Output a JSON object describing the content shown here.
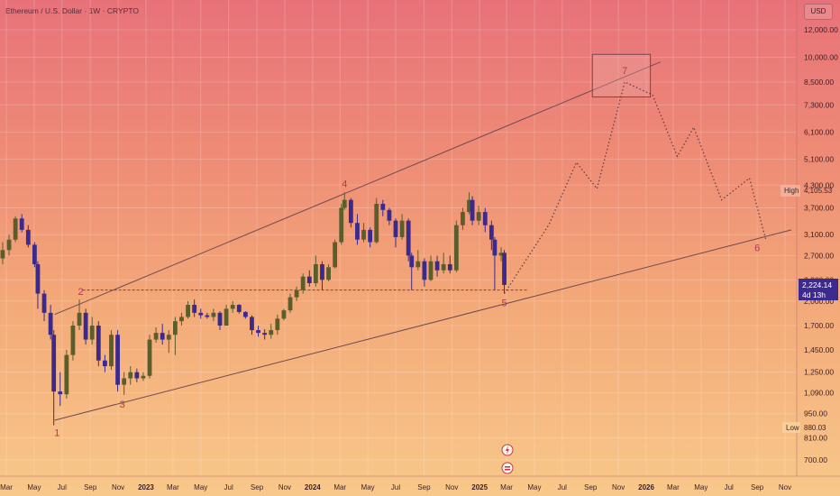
{
  "header": {
    "title": "Ethereum / U.S. Dollar · 1W · CRYPTO",
    "currency_button": "USD"
  },
  "colors": {
    "candle_up": "#5b5d2a",
    "candle_down": "#3b2a8c",
    "trendline": "#6e4a52",
    "projection": "#5a3a40",
    "wave_label": "#b8325a",
    "current_price_bg": "#3d2a8e"
  },
  "chart_data": {
    "type": "candlestick",
    "symbol": "Ethereum / U.S. Dollar",
    "interval": "1W",
    "y_scale": "log",
    "price_ticks": [
      12000,
      10000,
      8500,
      7300,
      6100,
      5100,
      4300,
      3700,
      3100,
      2700,
      2300,
      2000,
      1700,
      1450,
      1250,
      1090,
      950,
      810,
      700
    ],
    "price_tick_labels": [
      "12,000.00",
      "10,000.00",
      "8,500.00",
      "7,300.00",
      "6,100.00",
      "5,100.00",
      "4,300.00",
      "3,700.00",
      "3,100.00",
      "2,700.00",
      "2,300.00",
      "2,000.00",
      "1,700.00",
      "1,450.00",
      "1,250.00",
      "1,090.00",
      "950.00",
      "810.00",
      "700.00"
    ],
    "time_ticks": [
      {
        "label": "Mar",
        "date": "2022-03",
        "bold": false
      },
      {
        "label": "May",
        "date": "2022-05",
        "bold": false
      },
      {
        "label": "Jul",
        "date": "2022-07",
        "bold": false
      },
      {
        "label": "Sep",
        "date": "2022-09",
        "bold": false
      },
      {
        "label": "Nov",
        "date": "2022-11",
        "bold": false
      },
      {
        "label": "2023",
        "date": "2023-01",
        "bold": true
      },
      {
        "label": "Mar",
        "date": "2023-03",
        "bold": false
      },
      {
        "label": "May",
        "date": "2023-05",
        "bold": false
      },
      {
        "label": "Jul",
        "date": "2023-07",
        "bold": false
      },
      {
        "label": "Sep",
        "date": "2023-09",
        "bold": false
      },
      {
        "label": "Nov",
        "date": "2023-11",
        "bold": false
      },
      {
        "label": "2024",
        "date": "2024-01",
        "bold": true
      },
      {
        "label": "Mar",
        "date": "2024-03",
        "bold": false
      },
      {
        "label": "May",
        "date": "2024-05",
        "bold": false
      },
      {
        "label": "Jul",
        "date": "2024-07",
        "bold": false
      },
      {
        "label": "Sep",
        "date": "2024-09",
        "bold": false
      },
      {
        "label": "Nov",
        "date": "2024-11",
        "bold": false
      },
      {
        "label": "2025",
        "date": "2025-01",
        "bold": true
      },
      {
        "label": "Mar",
        "date": "2025-03",
        "bold": false
      },
      {
        "label": "May",
        "date": "2025-05",
        "bold": false
      },
      {
        "label": "Jul",
        "date": "2025-07",
        "bold": false
      },
      {
        "label": "Sep",
        "date": "2025-09",
        "bold": false
      },
      {
        "label": "Nov",
        "date": "2025-11",
        "bold": false
      },
      {
        "label": "2026",
        "date": "2026-01",
        "bold": true
      },
      {
        "label": "Mar",
        "date": "2026-03",
        "bold": false
      },
      {
        "label": "May",
        "date": "2026-05",
        "bold": false
      },
      {
        "label": "Jul",
        "date": "2026-07",
        "bold": false
      },
      {
        "label": "Sep",
        "date": "2026-09",
        "bold": false
      },
      {
        "label": "Nov",
        "date": "2026-11",
        "bold": false
      }
    ],
    "high": {
      "label": "High",
      "value": 4105.53,
      "value_label": "4,105.53"
    },
    "low": {
      "label": "Low",
      "value": 880.03,
      "value_label": "880.03"
    },
    "current_price": {
      "value": 2224.14,
      "value_label": "2,224.14",
      "countdown": "4d 13h"
    },
    "support_level": 2150,
    "wave_points": [
      {
        "label": "1",
        "date": "2022-06-20",
        "price": 880
      },
      {
        "label": "2",
        "date": "2022-08-15",
        "price": 2020
      },
      {
        "label": "3",
        "date": "2022-11-10",
        "price": 1075
      },
      {
        "label": "4",
        "date": "2024-03-11",
        "price": 4100
      },
      {
        "label": "5",
        "date": "2025-02-24",
        "price": 2100
      },
      {
        "label": "7",
        "date": "2025-11-15",
        "price": 8500
      },
      {
        "label": "6",
        "date": "2026-09-05",
        "price": 2950
      }
    ],
    "channel_upper": [
      {
        "date": "2022-06-15",
        "price": 1830
      },
      {
        "date": "2026-02-01",
        "price": 9700
      }
    ],
    "channel_lower": [
      {
        "date": "2022-06-15",
        "price": 910
      },
      {
        "date": "2026-11-15",
        "price": 3200
      }
    ],
    "target_box": {
      "from": "2025-09-05",
      "to": "2026-01-10",
      "high": 10200,
      "low": 7700
    },
    "projection_path": [
      {
        "date": "2025-02-24",
        "price": 2100
      },
      {
        "date": "2025-06-01",
        "price": 3300
      },
      {
        "date": "2025-08-01",
        "price": 5000
      },
      {
        "date": "2025-09-15",
        "price": 4200
      },
      {
        "date": "2025-11-15",
        "price": 8500
      },
      {
        "date": "2026-01-15",
        "price": 7800
      },
      {
        "date": "2026-03-10",
        "price": 5200
      },
      {
        "date": "2026-04-15",
        "price": 6300
      },
      {
        "date": "2026-06-15",
        "price": 3900
      },
      {
        "date": "2026-08-15",
        "price": 4500
      },
      {
        "date": "2026-09-20",
        "price": 3000
      }
    ],
    "candles": [
      {
        "date": "2022-02-07",
        "o": 2600,
        "h": 2850,
        "l": 2450,
        "c": 2650
      },
      {
        "date": "2022-02-21",
        "o": 2650,
        "h": 2950,
        "l": 2550,
        "c": 2800
      },
      {
        "date": "2022-03-07",
        "o": 2800,
        "h": 3100,
        "l": 2700,
        "c": 3000
      },
      {
        "date": "2022-03-21",
        "o": 3000,
        "h": 3500,
        "l": 2950,
        "c": 3450
      },
      {
        "date": "2022-04-04",
        "o": 3450,
        "h": 3550,
        "l": 3150,
        "c": 3200
      },
      {
        "date": "2022-04-18",
        "o": 3200,
        "h": 3300,
        "l": 2850,
        "c": 2900
      },
      {
        "date": "2022-05-02",
        "o": 2900,
        "h": 2950,
        "l": 2500,
        "c": 2550
      },
      {
        "date": "2022-05-09",
        "o": 2550,
        "h": 2600,
        "l": 1900,
        "c": 2100
      },
      {
        "date": "2022-05-23",
        "o": 2100,
        "h": 2150,
        "l": 1750,
        "c": 1850
      },
      {
        "date": "2022-06-06",
        "o": 1850,
        "h": 1950,
        "l": 1550,
        "c": 1600
      },
      {
        "date": "2022-06-13",
        "o": 1600,
        "h": 1650,
        "l": 880,
        "c": 1100
      },
      {
        "date": "2022-06-27",
        "o": 1100,
        "h": 1250,
        "l": 1000,
        "c": 1080
      },
      {
        "date": "2022-07-11",
        "o": 1080,
        "h": 1450,
        "l": 1050,
        "c": 1400
      },
      {
        "date": "2022-07-25",
        "o": 1400,
        "h": 1750,
        "l": 1350,
        "c": 1700
      },
      {
        "date": "2022-08-08",
        "o": 1700,
        "h": 2020,
        "l": 1650,
        "c": 1850
      },
      {
        "date": "2022-08-22",
        "o": 1850,
        "h": 1900,
        "l": 1500,
        "c": 1550
      },
      {
        "date": "2022-09-05",
        "o": 1550,
        "h": 1800,
        "l": 1500,
        "c": 1700
      },
      {
        "date": "2022-09-19",
        "o": 1700,
        "h": 1750,
        "l": 1300,
        "c": 1350
      },
      {
        "date": "2022-10-03",
        "o": 1350,
        "h": 1400,
        "l": 1250,
        "c": 1300
      },
      {
        "date": "2022-10-17",
        "o": 1300,
        "h": 1650,
        "l": 1270,
        "c": 1600
      },
      {
        "date": "2022-10-31",
        "o": 1600,
        "h": 1650,
        "l": 1100,
        "c": 1150
      },
      {
        "date": "2022-11-14",
        "o": 1150,
        "h": 1250,
        "l": 1075,
        "c": 1200
      },
      {
        "date": "2022-11-28",
        "o": 1200,
        "h": 1300,
        "l": 1150,
        "c": 1250
      },
      {
        "date": "2022-12-12",
        "o": 1250,
        "h": 1280,
        "l": 1170,
        "c": 1200
      },
      {
        "date": "2022-12-26",
        "o": 1200,
        "h": 1250,
        "l": 1180,
        "c": 1220
      },
      {
        "date": "2023-01-09",
        "o": 1220,
        "h": 1600,
        "l": 1200,
        "c": 1550
      },
      {
        "date": "2023-01-23",
        "o": 1550,
        "h": 1680,
        "l": 1520,
        "c": 1620
      },
      {
        "date": "2023-02-06",
        "o": 1620,
        "h": 1720,
        "l": 1500,
        "c": 1550
      },
      {
        "date": "2023-02-20",
        "o": 1550,
        "h": 1650,
        "l": 1420,
        "c": 1600
      },
      {
        "date": "2023-03-06",
        "o": 1600,
        "h": 1800,
        "l": 1400,
        "c": 1750
      },
      {
        "date": "2023-03-20",
        "o": 1750,
        "h": 1850,
        "l": 1700,
        "c": 1800
      },
      {
        "date": "2023-04-03",
        "o": 1800,
        "h": 2000,
        "l": 1780,
        "c": 1950
      },
      {
        "date": "2023-04-17",
        "o": 1950,
        "h": 2020,
        "l": 1800,
        "c": 1850
      },
      {
        "date": "2023-05-01",
        "o": 1850,
        "h": 1900,
        "l": 1780,
        "c": 1820
      },
      {
        "date": "2023-05-15",
        "o": 1820,
        "h": 1850,
        "l": 1780,
        "c": 1800
      },
      {
        "date": "2023-05-29",
        "o": 1800,
        "h": 1900,
        "l": 1750,
        "c": 1850
      },
      {
        "date": "2023-06-12",
        "o": 1850,
        "h": 1870,
        "l": 1650,
        "c": 1700
      },
      {
        "date": "2023-06-26",
        "o": 1700,
        "h": 1950,
        "l": 1700,
        "c": 1900
      },
      {
        "date": "2023-07-10",
        "o": 1900,
        "h": 2000,
        "l": 1850,
        "c": 1950
      },
      {
        "date": "2023-07-24",
        "o": 1950,
        "h": 1960,
        "l": 1840,
        "c": 1860
      },
      {
        "date": "2023-08-07",
        "o": 1860,
        "h": 1870,
        "l": 1780,
        "c": 1800
      },
      {
        "date": "2023-08-21",
        "o": 1800,
        "h": 1820,
        "l": 1600,
        "c": 1650
      },
      {
        "date": "2023-09-04",
        "o": 1650,
        "h": 1700,
        "l": 1580,
        "c": 1620
      },
      {
        "date": "2023-09-18",
        "o": 1620,
        "h": 1660,
        "l": 1550,
        "c": 1600
      },
      {
        "date": "2023-10-02",
        "o": 1600,
        "h": 1720,
        "l": 1560,
        "c": 1650
      },
      {
        "date": "2023-10-16",
        "o": 1650,
        "h": 1830,
        "l": 1600,
        "c": 1780
      },
      {
        "date": "2023-10-30",
        "o": 1780,
        "h": 1900,
        "l": 1760,
        "c": 1880
      },
      {
        "date": "2023-11-13",
        "o": 1880,
        "h": 2100,
        "l": 1850,
        "c": 2050
      },
      {
        "date": "2023-11-27",
        "o": 2050,
        "h": 2200,
        "l": 2000,
        "c": 2150
      },
      {
        "date": "2023-12-11",
        "o": 2150,
        "h": 2400,
        "l": 2100,
        "c": 2350
      },
      {
        "date": "2023-12-25",
        "o": 2350,
        "h": 2450,
        "l": 2200,
        "c": 2250
      },
      {
        "date": "2024-01-08",
        "o": 2250,
        "h": 2700,
        "l": 2200,
        "c": 2550
      },
      {
        "date": "2024-01-22",
        "o": 2550,
        "h": 2600,
        "l": 2150,
        "c": 2300
      },
      {
        "date": "2024-02-05",
        "o": 2300,
        "h": 2550,
        "l": 2280,
        "c": 2500
      },
      {
        "date": "2024-02-19",
        "o": 2500,
        "h": 3000,
        "l": 2480,
        "c": 2950
      },
      {
        "date": "2024-03-04",
        "o": 2950,
        "h": 3800,
        "l": 2900,
        "c": 3700
      },
      {
        "date": "2024-03-11",
        "o": 3700,
        "h": 4100,
        "l": 3650,
        "c": 3900
      },
      {
        "date": "2024-03-25",
        "o": 3900,
        "h": 3950,
        "l": 3250,
        "c": 3350
      },
      {
        "date": "2024-04-08",
        "o": 3350,
        "h": 3550,
        "l": 2900,
        "c": 3000
      },
      {
        "date": "2024-04-22",
        "o": 3000,
        "h": 3350,
        "l": 2950,
        "c": 3200
      },
      {
        "date": "2024-05-06",
        "o": 3200,
        "h": 3250,
        "l": 2850,
        "c": 2950
      },
      {
        "date": "2024-05-20",
        "o": 2950,
        "h": 3950,
        "l": 2920,
        "c": 3800
      },
      {
        "date": "2024-06-03",
        "o": 3800,
        "h": 3900,
        "l": 3500,
        "c": 3650
      },
      {
        "date": "2024-06-17",
        "o": 3650,
        "h": 3700,
        "l": 3300,
        "c": 3400
      },
      {
        "date": "2024-07-01",
        "o": 3400,
        "h": 3450,
        "l": 2850,
        "c": 3050
      },
      {
        "date": "2024-07-15",
        "o": 3050,
        "h": 3550,
        "l": 3000,
        "c": 3400
      },
      {
        "date": "2024-07-29",
        "o": 3400,
        "h": 3450,
        "l": 2600,
        "c": 2700
      },
      {
        "date": "2024-08-05",
        "o": 2700,
        "h": 2750,
        "l": 2150,
        "c": 2500
      },
      {
        "date": "2024-08-19",
        "o": 2500,
        "h": 2800,
        "l": 2450,
        "c": 2600
      },
      {
        "date": "2024-09-02",
        "o": 2600,
        "h": 2650,
        "l": 2200,
        "c": 2300
      },
      {
        "date": "2024-09-16",
        "o": 2300,
        "h": 2700,
        "l": 2280,
        "c": 2600
      },
      {
        "date": "2024-09-30",
        "o": 2600,
        "h": 2700,
        "l": 2350,
        "c": 2450
      },
      {
        "date": "2024-10-14",
        "o": 2450,
        "h": 2750,
        "l": 2400,
        "c": 2550
      },
      {
        "date": "2024-10-28",
        "o": 2550,
        "h": 2700,
        "l": 2400,
        "c": 2450
      },
      {
        "date": "2024-11-11",
        "o": 2450,
        "h": 3400,
        "l": 2420,
        "c": 3300
      },
      {
        "date": "2024-11-25",
        "o": 3300,
        "h": 3700,
        "l": 3200,
        "c": 3600
      },
      {
        "date": "2024-12-09",
        "o": 3600,
        "h": 4100,
        "l": 3550,
        "c": 3900
      },
      {
        "date": "2024-12-16",
        "o": 3900,
        "h": 4000,
        "l": 3300,
        "c": 3400
      },
      {
        "date": "2024-12-30",
        "o": 3400,
        "h": 3750,
        "l": 3300,
        "c": 3600
      },
      {
        "date": "2025-01-13",
        "o": 3600,
        "h": 3700,
        "l": 3150,
        "c": 3300
      },
      {
        "date": "2025-01-27",
        "o": 3300,
        "h": 3400,
        "l": 2800,
        "c": 3000
      },
      {
        "date": "2025-02-03",
        "o": 3000,
        "h": 3050,
        "l": 2150,
        "c": 2700
      },
      {
        "date": "2025-02-17",
        "o": 2700,
        "h": 2850,
        "l": 2600,
        "c": 2750
      },
      {
        "date": "2025-02-24",
        "o": 2750,
        "h": 2800,
        "l": 2100,
        "c": 2224.14
      }
    ]
  },
  "wave_labels": {
    "w1": "1",
    "w2": "2",
    "w3": "3",
    "w4": "4",
    "w5": "5",
    "w6": "6",
    "w7": "7"
  },
  "labels": {
    "high_label": "High",
    "high_value": "4,105.53",
    "low_label": "Low",
    "low_value": "880.03",
    "current_price": "2,224.14",
    "countdown": "4d 13h"
  },
  "price_axis": [
    "12,000.00",
    "10,000.00",
    "8,500.00",
    "7,300.00",
    "6,100.00",
    "5,100.00",
    "4,300.00",
    "3,700.00",
    "3,100.00",
    "2,700.00",
    "2,300.00",
    "2,000.00",
    "1,700.00",
    "1,450.00",
    "1,250.00",
    "1,090.00",
    "950.00",
    "810.00",
    "700.00"
  ],
  "time_axis": [
    "Mar",
    "May",
    "Jul",
    "Sep",
    "Nov",
    "2023",
    "Mar",
    "May",
    "Jul",
    "Sep",
    "Nov",
    "2024",
    "Mar",
    "May",
    "Jul",
    "Sep",
    "Nov",
    "2025",
    "Mar",
    "May",
    "Jul",
    "Sep",
    "Nov",
    "2026",
    "Mar",
    "May",
    "Jul",
    "Sep",
    "Nov"
  ]
}
